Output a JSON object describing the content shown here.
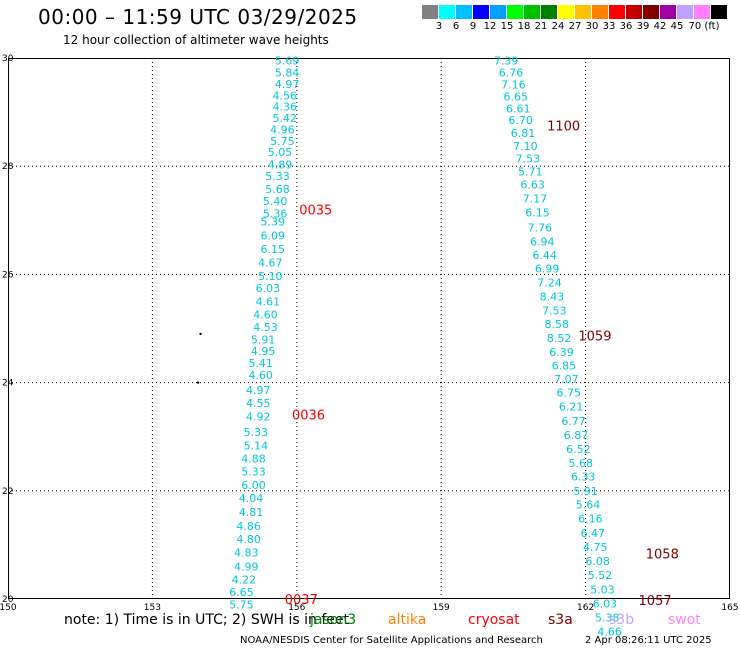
{
  "header": {
    "title": "00:00 – 11:59 UTC 03/29/2025",
    "subtitle": "12 hour collection of altimeter wave heights"
  },
  "colorbar": {
    "colors": [
      "#808080",
      "#00ffff",
      "#00bfff",
      "#0000ff",
      "#00a0ff",
      "#00ff00",
      "#00c000",
      "#008000",
      "#ffff00",
      "#ffc000",
      "#ff8000",
      "#ff0000",
      "#c00000",
      "#800000",
      "#a000a0",
      "#c0a0ff",
      "#ff80ff",
      "#000000"
    ],
    "labels": [
      "3",
      "6",
      "9",
      "12",
      "15",
      "18",
      "21",
      "24",
      "27",
      "30",
      "33",
      "36",
      "39",
      "42",
      "45",
      "70 (ft)"
    ]
  },
  "axes": {
    "x_labels": [
      "150",
      "153",
      "156",
      "159",
      "162",
      "165"
    ],
    "y_labels": [
      "20",
      "22",
      "24",
      "26",
      "28",
      "30"
    ]
  },
  "chart_data": {
    "type": "scatter",
    "xlim": [
      150,
      165
    ],
    "ylim": [
      20,
      30
    ],
    "grid": true,
    "units": "ft",
    "series": [
      {
        "track": "west",
        "points": [
          {
            "lon": 155.8,
            "lat": 29.95,
            "value": "5.69",
            "color": "#00c8d8"
          },
          {
            "lon": 155.8,
            "lat": 29.73,
            "value": "5.84",
            "color": "#00c8d8"
          },
          {
            "lon": 155.8,
            "lat": 29.52,
            "value": "4.97",
            "color": "#00c8d8"
          },
          {
            "lon": 155.75,
            "lat": 29.31,
            "value": "4.56",
            "color": "#00c8d8"
          },
          {
            "lon": 155.75,
            "lat": 29.1,
            "value": "4.36",
            "color": "#00c8d8"
          },
          {
            "lon": 155.75,
            "lat": 28.89,
            "value": "5.42",
            "color": "#00c8d8"
          },
          {
            "lon": 155.7,
            "lat": 28.68,
            "value": "4.96",
            "color": "#00c8d8"
          },
          {
            "lon": 155.7,
            "lat": 28.47,
            "value": "5.75",
            "color": "#00c8d8"
          },
          {
            "lon": 155.65,
            "lat": 28.26,
            "value": "5.05",
            "color": "#00c8d8"
          },
          {
            "lon": 155.65,
            "lat": 28.03,
            "value": "4.89",
            "color": "#00c8d8"
          },
          {
            "lon": 155.6,
            "lat": 27.82,
            "value": "5.33",
            "color": "#00c8d8"
          },
          {
            "lon": 155.6,
            "lat": 27.58,
            "value": "5.68",
            "color": "#00c8d8"
          },
          {
            "lon": 155.55,
            "lat": 27.36,
            "value": "5.40",
            "color": "#00c8d8"
          },
          {
            "lon": 155.55,
            "lat": 27.13,
            "value": "5.36",
            "color": "#00c8d8"
          },
          {
            "lon": 155.5,
            "lat": 26.98,
            "value": "5.39",
            "color": "#00c8d8"
          },
          {
            "lon": 155.5,
            "lat": 26.72,
            "value": "6.09",
            "color": "#00c8d8"
          },
          {
            "lon": 155.5,
            "lat": 26.47,
            "value": "6.15",
            "color": "#00c8d8"
          },
          {
            "lon": 155.45,
            "lat": 26.22,
            "value": "4.67",
            "color": "#00c8d8"
          },
          {
            "lon": 155.45,
            "lat": 25.97,
            "value": "5.10",
            "color": "#00c8d8"
          },
          {
            "lon": 155.4,
            "lat": 25.75,
            "value": "6.03",
            "color": "#00c8d8"
          },
          {
            "lon": 155.4,
            "lat": 25.5,
            "value": "4.61",
            "color": "#00c8d8"
          },
          {
            "lon": 155.35,
            "lat": 25.26,
            "value": "4.60",
            "color": "#00c8d8"
          },
          {
            "lon": 155.35,
            "lat": 25.03,
            "value": "4.53",
            "color": "#00c8d8"
          },
          {
            "lon": 155.3,
            "lat": 24.8,
            "value": "5.91",
            "color": "#00c8d8"
          },
          {
            "lon": 155.3,
            "lat": 24.58,
            "value": "4.95",
            "color": "#00c8d8"
          },
          {
            "lon": 155.25,
            "lat": 24.36,
            "value": "5.41",
            "color": "#00c8d8"
          },
          {
            "lon": 155.25,
            "lat": 24.14,
            "value": "4.60",
            "color": "#00c8d8"
          },
          {
            "lon": 155.2,
            "lat": 23.86,
            "value": "4.97",
            "color": "#00c8d8"
          },
          {
            "lon": 155.2,
            "lat": 23.62,
            "value": "4.55",
            "color": "#00c8d8"
          },
          {
            "lon": 155.2,
            "lat": 23.37,
            "value": "4.92",
            "color": "#00c8d8"
          },
          {
            "lon": 155.15,
            "lat": 23.09,
            "value": "5.33",
            "color": "#00c8d8"
          },
          {
            "lon": 155.15,
            "lat": 22.84,
            "value": "5.14",
            "color": "#00c8d8"
          },
          {
            "lon": 155.1,
            "lat": 22.6,
            "value": "4.88",
            "color": "#00c8d8"
          },
          {
            "lon": 155.1,
            "lat": 22.36,
            "value": "5.33",
            "color": "#00c8d8"
          },
          {
            "lon": 155.1,
            "lat": 22.11,
            "value": "6.00",
            "color": "#00c8d8"
          },
          {
            "lon": 155.05,
            "lat": 21.87,
            "value": "4.04",
            "color": "#00c8d8"
          },
          {
            "lon": 155.05,
            "lat": 21.61,
            "value": "4.81",
            "color": "#00c8d8"
          },
          {
            "lon": 155.0,
            "lat": 21.35,
            "value": "4.86",
            "color": "#00c8d8"
          },
          {
            "lon": 155.0,
            "lat": 21.11,
            "value": "4.80",
            "color": "#00c8d8"
          },
          {
            "lon": 154.95,
            "lat": 20.86,
            "value": "4.83",
            "color": "#00c8d8"
          },
          {
            "lon": 154.95,
            "lat": 20.6,
            "value": "4.99",
            "color": "#00c8d8"
          },
          {
            "lon": 154.9,
            "lat": 20.36,
            "value": "4.22",
            "color": "#00c8d8"
          },
          {
            "lon": 154.85,
            "lat": 20.13,
            "value": "6.65",
            "color": "#00c8d8"
          },
          {
            "lon": 154.85,
            "lat": 19.9,
            "value": "5.75",
            "color": "#00c8d8"
          }
        ]
      },
      {
        "track": "east",
        "points": [
          {
            "lon": 160.35,
            "lat": 29.95,
            "value": "7.39",
            "color": "#00c8d8"
          },
          {
            "lon": 160.45,
            "lat": 29.73,
            "value": "6.76",
            "color": "#00c8d8"
          },
          {
            "lon": 160.5,
            "lat": 29.51,
            "value": "7.16",
            "color": "#00c8d8"
          },
          {
            "lon": 160.55,
            "lat": 29.29,
            "value": "6.65",
            "color": "#00c8d8"
          },
          {
            "lon": 160.6,
            "lat": 29.07,
            "value": "6.61",
            "color": "#00c8d8"
          },
          {
            "lon": 160.65,
            "lat": 28.85,
            "value": "6.70",
            "color": "#00c8d8"
          },
          {
            "lon": 160.7,
            "lat": 28.61,
            "value": "6.81",
            "color": "#00c8d8"
          },
          {
            "lon": 160.75,
            "lat": 28.37,
            "value": "7.10",
            "color": "#00c8d8"
          },
          {
            "lon": 160.8,
            "lat": 28.14,
            "value": "7.53",
            "color": "#00c8d8"
          },
          {
            "lon": 160.85,
            "lat": 27.9,
            "value": "5.71",
            "color": "#00c8d8"
          },
          {
            "lon": 160.9,
            "lat": 27.66,
            "value": "6.63",
            "color": "#00c8d8"
          },
          {
            "lon": 160.95,
            "lat": 27.4,
            "value": "7.17",
            "color": "#00c8d8"
          },
          {
            "lon": 161.0,
            "lat": 27.14,
            "value": "6.15",
            "color": "#00c8d8"
          },
          {
            "lon": 161.05,
            "lat": 26.87,
            "value": "7.76",
            "color": "#00c8d8"
          },
          {
            "lon": 161.1,
            "lat": 26.61,
            "value": "6.94",
            "color": "#00c8d8"
          },
          {
            "lon": 161.15,
            "lat": 26.36,
            "value": "6.44",
            "color": "#00c8d8"
          },
          {
            "lon": 161.2,
            "lat": 26.11,
            "value": "6.99",
            "color": "#00c8d8"
          },
          {
            "lon": 161.25,
            "lat": 25.85,
            "value": "7.24",
            "color": "#00c8d8"
          },
          {
            "lon": 161.3,
            "lat": 25.59,
            "value": "8.43",
            "color": "#00c8d8"
          },
          {
            "lon": 161.35,
            "lat": 25.33,
            "value": "7.53",
            "color": "#00c8d8"
          },
          {
            "lon": 161.4,
            "lat": 25.08,
            "value": "8.58",
            "color": "#00c8d8"
          },
          {
            "lon": 161.45,
            "lat": 24.82,
            "value": "8.52",
            "color": "#00c8d8"
          },
          {
            "lon": 161.5,
            "lat": 24.57,
            "value": "6.39",
            "color": "#00c8d8"
          },
          {
            "lon": 161.55,
            "lat": 24.32,
            "value": "6.85",
            "color": "#00c8d8"
          },
          {
            "lon": 161.6,
            "lat": 24.07,
            "value": "7.07",
            "color": "#00c8d8"
          },
          {
            "lon": 161.65,
            "lat": 23.82,
            "value": "6.75",
            "color": "#00c8d8"
          },
          {
            "lon": 161.7,
            "lat": 23.56,
            "value": "6.21",
            "color": "#00c8d8"
          },
          {
            "lon": 161.75,
            "lat": 23.29,
            "value": "6.77",
            "color": "#00c8d8"
          },
          {
            "lon": 161.8,
            "lat": 23.03,
            "value": "6.87",
            "color": "#00c8d8"
          },
          {
            "lon": 161.85,
            "lat": 22.77,
            "value": "6.52",
            "color": "#00c8d8"
          },
          {
            "lon": 161.9,
            "lat": 22.51,
            "value": "5.68",
            "color": "#00c8d8"
          },
          {
            "lon": 161.95,
            "lat": 22.26,
            "value": "6.33",
            "color": "#00c8d8"
          },
          {
            "lon": 162.0,
            "lat": 22.0,
            "value": "5.91",
            "color": "#00c8d8"
          },
          {
            "lon": 162.05,
            "lat": 21.75,
            "value": "5.64",
            "color": "#00c8d8"
          },
          {
            "lon": 162.1,
            "lat": 21.49,
            "value": "6.16",
            "color": "#00c8d8"
          },
          {
            "lon": 162.15,
            "lat": 21.22,
            "value": "6.47",
            "color": "#00c8d8"
          },
          {
            "lon": 162.2,
            "lat": 20.96,
            "value": "4.75",
            "color": "#00c8d8"
          },
          {
            "lon": 162.25,
            "lat": 20.7,
            "value": "6.08",
            "color": "#00c8d8"
          },
          {
            "lon": 162.3,
            "lat": 20.44,
            "value": "5.52",
            "color": "#00c8d8"
          },
          {
            "lon": 162.35,
            "lat": 20.18,
            "value": "5.03",
            "color": "#00c8d8"
          },
          {
            "lon": 162.4,
            "lat": 19.92,
            "value": "6.03",
            "color": "#00c8d8"
          },
          {
            "lon": 162.45,
            "lat": 19.66,
            "value": "5.38",
            "color": "#00c8d8"
          },
          {
            "lon": 162.5,
            "lat": 19.4,
            "value": "4.66",
            "color": "#00c8d8"
          }
        ]
      }
    ],
    "time_labels": [
      {
        "lon": 156.05,
        "lat": 27.18,
        "text": "0035",
        "color": "#ff0000"
      },
      {
        "lon": 155.9,
        "lat": 23.39,
        "text": "0036",
        "color": "#ff0000"
      },
      {
        "lon": 155.75,
        "lat": 19.98,
        "text": "0037",
        "color": "#ff0000"
      },
      {
        "lon": 161.2,
        "lat": 28.73,
        "text": "1100",
        "color": "#800000"
      },
      {
        "lon": 161.85,
        "lat": 24.85,
        "text": "1059",
        "color": "#800000"
      },
      {
        "lon": 163.25,
        "lat": 20.82,
        "text": "1058",
        "color": "#800000"
      },
      {
        "lon": 163.1,
        "lat": 19.96,
        "text": "1057",
        "color": "#800000"
      }
    ],
    "marks": [
      {
        "lon": 154.0,
        "lat": 24.9
      },
      {
        "lon": 153.95,
        "lat": 24.0
      }
    ]
  },
  "footer": {
    "note": "note: 1) Time is in UTC; 2) SWH is in feet",
    "satellites": [
      {
        "name": "jason3",
        "color": "#008000"
      },
      {
        "name": "altika",
        "color": "#ff8000"
      },
      {
        "name": "cryosat",
        "color": "#ff0000"
      },
      {
        "name": "s3a",
        "color": "#800000"
      },
      {
        "name": "s3b",
        "color": "#c0a0ff"
      },
      {
        "name": "swot",
        "color": "#ff80ff"
      }
    ],
    "credit": "NOAA/NESDIS Center for Satellite Applications and Research",
    "timestamp": "2 Apr 08:26:11 UTC 2025"
  }
}
